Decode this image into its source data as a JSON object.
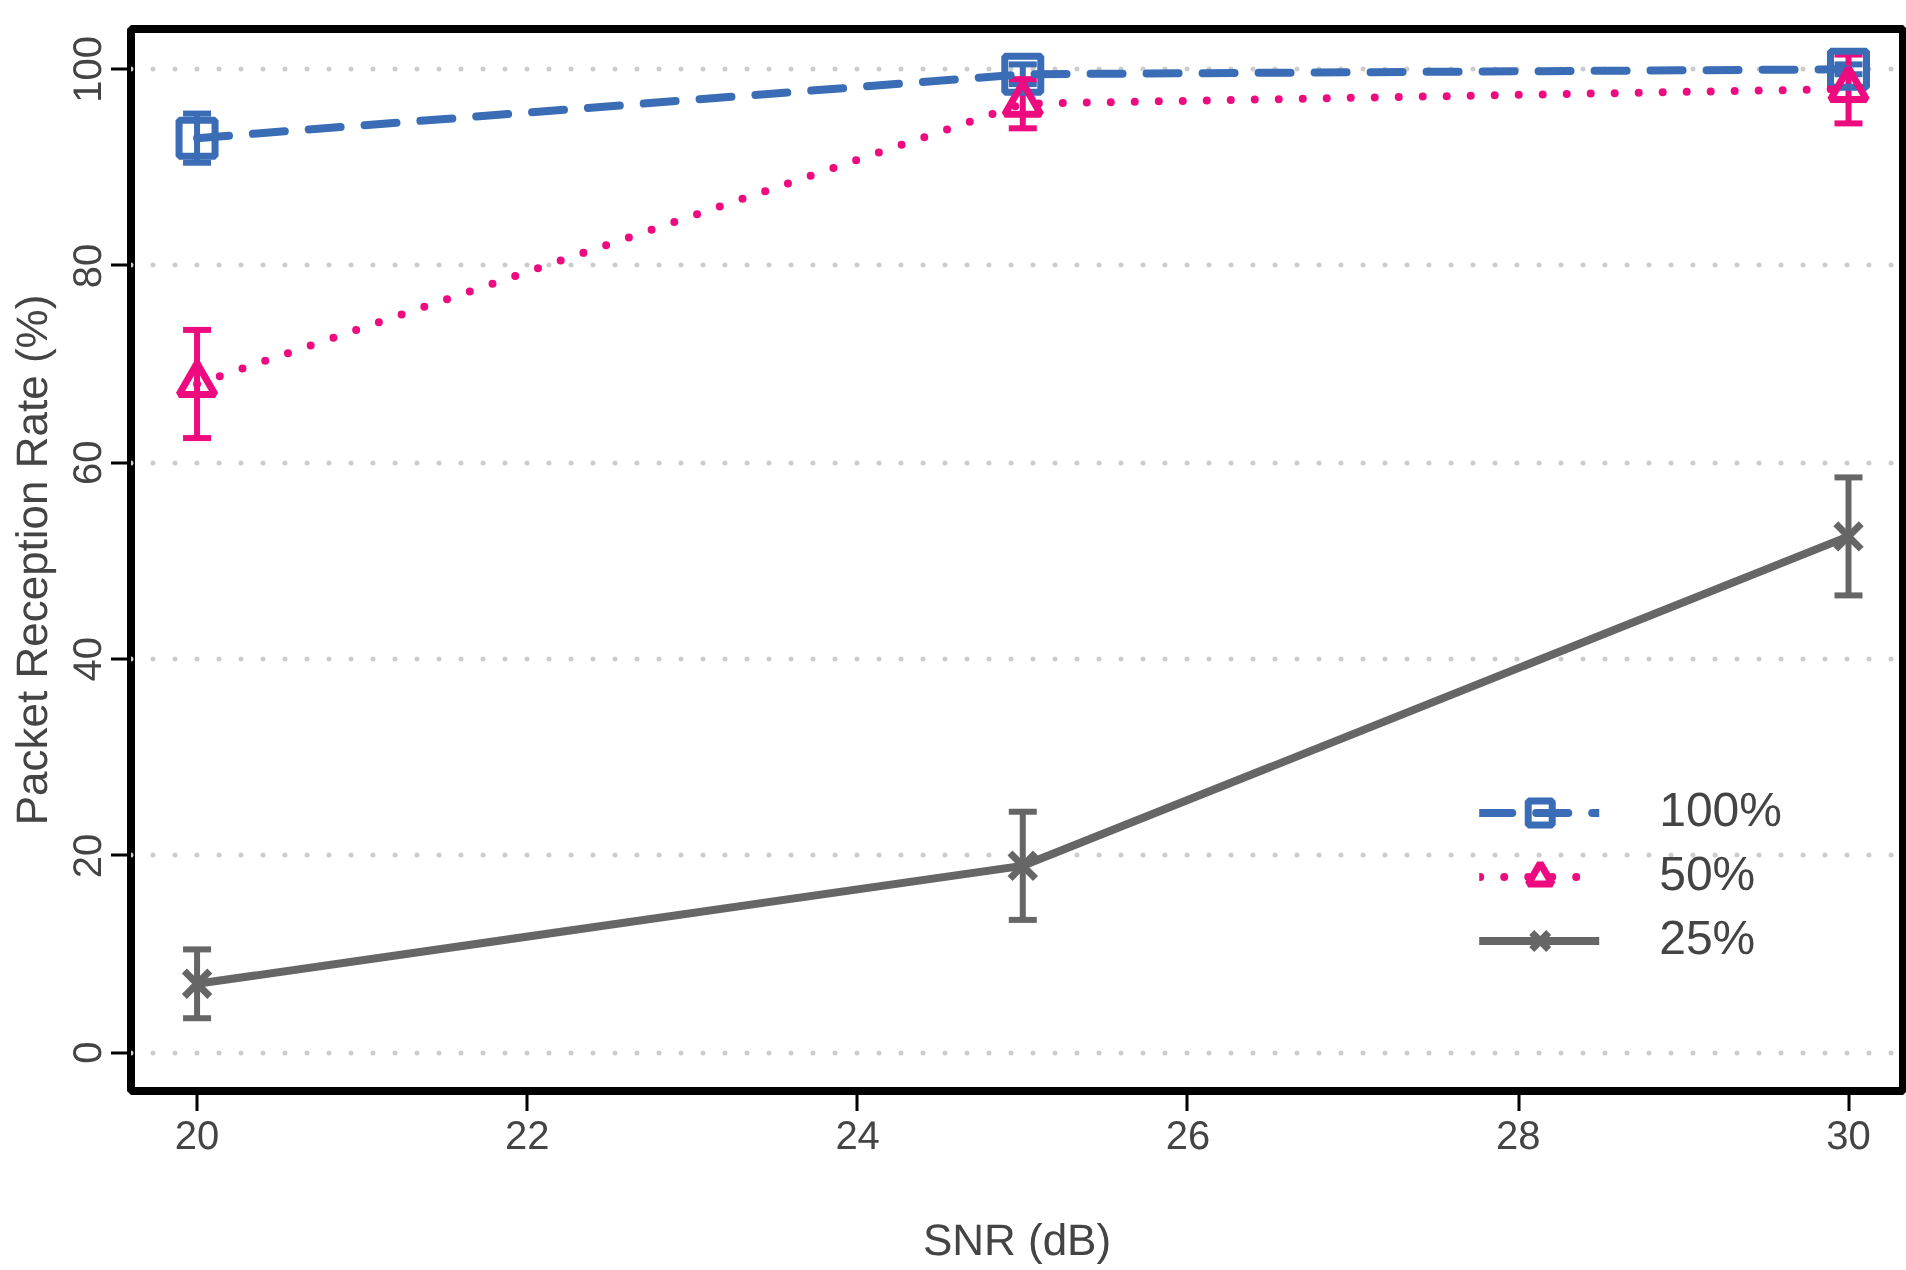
{
  "chart_data": {
    "type": "line",
    "xlabel": "SNR (dB)",
    "ylabel": "Packet Reception Rate (%)",
    "x": [
      20,
      25,
      30
    ],
    "xlim": [
      19.6,
      30.33
    ],
    "ylim": [
      -3.9,
      104.1
    ],
    "xticks": [
      20,
      22,
      24,
      26,
      28,
      30
    ],
    "yticks": [
      0,
      20,
      40,
      60,
      80,
      100
    ],
    "grid": "y",
    "legend": "bottom right",
    "series": [
      {
        "name": "100%",
        "color": "#3a6db5",
        "values": [
          93,
          99.5,
          100
        ],
        "errors": [
          2.5,
          1,
          0.5
        ],
        "marker": "square",
        "line_style": "dashed"
      },
      {
        "name": "50%",
        "color": "#ee0a7f",
        "values": [
          68,
          96.5,
          98
        ],
        "errors": [
          5.5,
          2.5,
          3.5
        ],
        "marker": "triangle",
        "line_style": "dotted"
      },
      {
        "name": "25%",
        "color": "#666666",
        "values": [
          7,
          19,
          52.5
        ],
        "errors": [
          3.5,
          5.5,
          6
        ],
        "marker": "x",
        "line_style": "solid"
      }
    ]
  }
}
